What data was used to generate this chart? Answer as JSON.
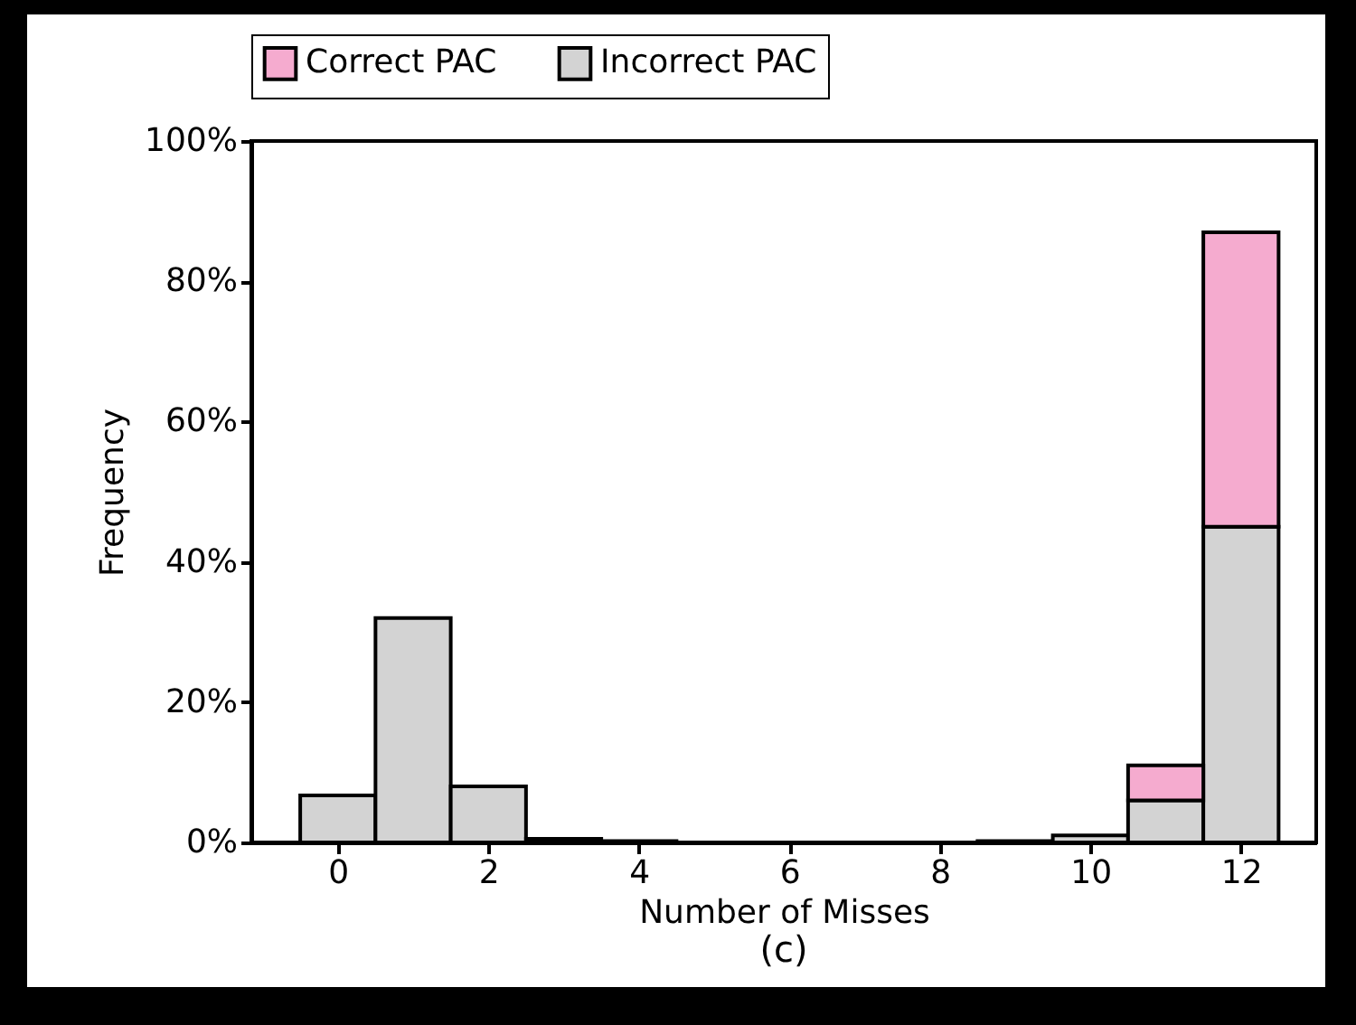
{
  "chart_data": {
    "type": "bar",
    "xlabel": "Number of Misses",
    "ylabel": "Frequency",
    "annotations": [
      "(c)"
    ],
    "x": [
      0,
      1,
      2,
      3,
      4,
      5,
      6,
      7,
      8,
      9,
      10,
      11,
      12
    ],
    "stacked": true,
    "legend": "top",
    "series": [
      {
        "name": "Incorrect PAC",
        "color": "#d3d3d3",
        "values": [
          6.7,
          32,
          8,
          0.5,
          0.2,
          null,
          null,
          null,
          null,
          0.2,
          1,
          6,
          45
        ]
      },
      {
        "name": "Correct PAC",
        "color": "#f5abcf",
        "values": [
          null,
          null,
          null,
          null,
          null,
          null,
          null,
          null,
          null,
          null,
          null,
          5,
          42
        ]
      }
    ],
    "xlim": [
      -1.15,
      13
    ],
    "xticks": [
      0,
      2,
      4,
      6,
      8,
      10,
      12
    ],
    "ylim": [
      0,
      100
    ],
    "yticks": [
      {
        "value": 0,
        "label": "0%"
      },
      {
        "value": 20,
        "label": "20%"
      },
      {
        "value": 40,
        "label": "40%"
      },
      {
        "value": 60,
        "label": "60%"
      },
      {
        "value": 80,
        "label": "80%"
      },
      {
        "value": 100,
        "label": "100%"
      }
    ]
  }
}
